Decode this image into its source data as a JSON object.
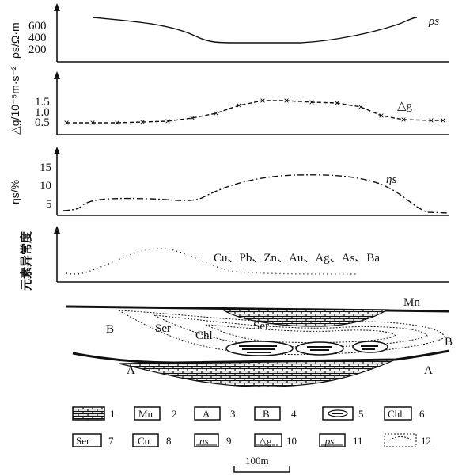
{
  "panels": {
    "resistivity": {
      "ylabel": "ρs/Ω·m",
      "ticks": [
        "600",
        "400",
        "200"
      ],
      "curve_label": "ρs"
    },
    "gravity": {
      "ylabel": "△g/10⁻⁵m·s⁻²",
      "ticks": [
        "1.5",
        "1.0",
        "0.5"
      ],
      "curve_label": "△g"
    },
    "polarization": {
      "ylabel": "ηs/%",
      "ticks": [
        "15",
        "10",
        "5"
      ],
      "curve_label": "ηs"
    },
    "elements": {
      "ylabel": "元素异常度",
      "elements_label": "Cu、Pb、Zn、Au、Ag、As、Ba"
    }
  },
  "section": {
    "labels": {
      "mn": "Mn",
      "b_left": "B",
      "b_right": "B",
      "ser_left": "Ser",
      "ser_right": "Ser",
      "chl": "Chl",
      "a_left": "A",
      "a_right": "A"
    }
  },
  "legend": {
    "items": [
      {
        "symbol": "",
        "num": "1"
      },
      {
        "symbol": "Mn",
        "num": "2"
      },
      {
        "symbol": "A",
        "num": "3"
      },
      {
        "symbol": "B",
        "num": "4"
      },
      {
        "symbol": "",
        "num": "5"
      },
      {
        "symbol": "Chl",
        "num": "6"
      },
      {
        "symbol": "Ser",
        "num": "7"
      },
      {
        "symbol": "Cu",
        "num": "8"
      },
      {
        "symbol": "ηs",
        "num": "9"
      },
      {
        "symbol": "△g",
        "num": "10"
      },
      {
        "symbol": "ρs",
        "num": "11"
      },
      {
        "symbol": "",
        "num": "12"
      }
    ]
  },
  "scale_bar": {
    "label": "100m"
  }
}
